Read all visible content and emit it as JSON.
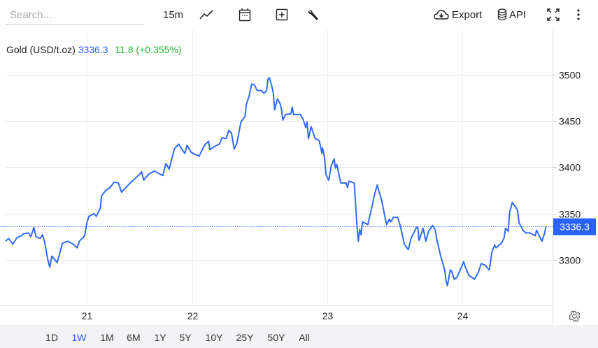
{
  "toolbar": {
    "search_placeholder": "Search...",
    "interval": "15m",
    "export_label": "Export",
    "api_label": "API",
    "icons": [
      "line-chart-icon",
      "calendar-icon",
      "add-indicator-icon",
      "wrench-icon",
      "cloud-download-icon",
      "database-icon",
      "fullscreen-icon",
      "more-vert-icon",
      "settings-gear-icon"
    ]
  },
  "legend": {
    "symbol": "Gold (USD/t.oz)",
    "last": "3336.3",
    "change": "11.8 (+0.355%)"
  },
  "ranges": [
    "1D",
    "1W",
    "1M",
    "6M",
    "1Y",
    "5Y",
    "10Y",
    "25Y",
    "50Y",
    "All"
  ],
  "active_range": "1W",
  "colors": {
    "line": "#2f6bff",
    "accent": "#2962ff",
    "positive": "#22bb33",
    "grid": "#e6e6e6"
  },
  "chart_data": {
    "type": "line",
    "title": "",
    "xlabel": "",
    "ylabel": "",
    "x_unit": "day of month",
    "x_ticks": [
      "21",
      "22",
      "23",
      "24"
    ],
    "y_ticks": [
      "3300",
      "3350",
      "3400",
      "3450",
      "3500"
    ],
    "ylim": [
      3251,
      3549
    ],
    "xlim": [
      20.23,
      24.67
    ],
    "grid": true,
    "last_price_label": "3336.3",
    "last_price": 3336.3,
    "series": [
      {
        "points": [
          [
            20.23,
            3320
          ],
          [
            20.26,
            3323
          ],
          [
            20.3,
            3317
          ],
          [
            20.34,
            3324
          ],
          [
            20.38,
            3326
          ],
          [
            20.4,
            3328
          ],
          [
            20.45,
            3329
          ],
          [
            20.47,
            3325
          ],
          [
            20.5,
            3335
          ],
          [
            20.52,
            3325
          ],
          [
            20.56,
            3323
          ],
          [
            20.58,
            3327
          ],
          [
            20.6,
            3320
          ],
          [
            20.63,
            3301
          ],
          [
            20.65,
            3292
          ],
          [
            20.67,
            3304
          ],
          [
            20.72,
            3297
          ],
          [
            20.74,
            3305
          ],
          [
            20.77,
            3318
          ],
          [
            20.82,
            3320
          ],
          [
            20.87,
            3317
          ],
          [
            20.91,
            3313
          ],
          [
            20.93,
            3320
          ],
          [
            20.98,
            3326
          ],
          [
            21.0,
            3339
          ],
          [
            21.02,
            3347
          ],
          [
            21.07,
            3350
          ],
          [
            21.09,
            3347
          ],
          [
            21.13,
            3356
          ],
          [
            21.14,
            3369
          ],
          [
            21.18,
            3375
          ],
          [
            21.22,
            3378
          ],
          [
            21.26,
            3384
          ],
          [
            21.3,
            3383
          ],
          [
            21.33,
            3373
          ],
          [
            21.37,
            3378
          ],
          [
            21.42,
            3384
          ],
          [
            21.47,
            3389
          ],
          [
            21.52,
            3395
          ],
          [
            21.54,
            3386
          ],
          [
            21.58,
            3392
          ],
          [
            21.64,
            3396
          ],
          [
            21.69,
            3393
          ],
          [
            21.72,
            3391
          ],
          [
            21.75,
            3404
          ],
          [
            21.78,
            3398
          ],
          [
            21.83,
            3420
          ],
          [
            21.87,
            3425
          ],
          [
            21.91,
            3418
          ],
          [
            21.93,
            3415
          ],
          [
            21.95,
            3424
          ],
          [
            21.99,
            3416
          ],
          [
            22.02,
            3414
          ],
          [
            22.05,
            3412
          ],
          [
            22.09,
            3424
          ],
          [
            22.12,
            3428
          ],
          [
            22.13,
            3419
          ],
          [
            22.17,
            3423
          ],
          [
            22.2,
            3425
          ],
          [
            22.22,
            3432
          ],
          [
            22.25,
            3431
          ],
          [
            22.27,
            3440
          ],
          [
            22.29,
            3437
          ],
          [
            22.31,
            3420
          ],
          [
            22.33,
            3426
          ],
          [
            22.36,
            3449
          ],
          [
            22.39,
            3455
          ],
          [
            22.4,
            3468
          ],
          [
            22.42,
            3477
          ],
          [
            22.44,
            3490
          ],
          [
            22.46,
            3489
          ],
          [
            22.48,
            3483
          ],
          [
            22.51,
            3483
          ],
          [
            22.53,
            3480
          ],
          [
            22.55,
            3483
          ],
          [
            22.56,
            3495
          ],
          [
            22.57,
            3497
          ],
          [
            22.59,
            3487
          ],
          [
            22.6,
            3480
          ],
          [
            22.61,
            3462
          ],
          [
            22.63,
            3474
          ],
          [
            22.65,
            3469
          ],
          [
            22.66,
            3463
          ],
          [
            22.67,
            3451
          ],
          [
            22.69,
            3457
          ],
          [
            22.73,
            3458
          ],
          [
            22.74,
            3465
          ],
          [
            22.75,
            3457
          ],
          [
            22.8,
            3457
          ],
          [
            22.82,
            3452
          ],
          [
            22.84,
            3443
          ],
          [
            22.85,
            3449
          ],
          [
            22.86,
            3431
          ],
          [
            22.88,
            3444
          ],
          [
            22.91,
            3431
          ],
          [
            22.94,
            3429
          ],
          [
            22.96,
            3415
          ],
          [
            22.965,
            3421
          ],
          [
            22.98,
            3410
          ],
          [
            22.99,
            3392
          ],
          [
            23.01,
            3386
          ],
          [
            23.03,
            3402
          ],
          [
            23.05,
            3409
          ],
          [
            23.06,
            3399
          ],
          [
            23.07,
            3403
          ],
          [
            23.1,
            3383
          ],
          [
            23.14,
            3383
          ],
          [
            23.15,
            3378
          ],
          [
            23.16,
            3385
          ],
          [
            23.2,
            3383
          ],
          [
            23.22,
            3335
          ],
          [
            23.23,
            3320
          ],
          [
            23.24,
            3333
          ],
          [
            23.25,
            3327
          ],
          [
            23.26,
            3341
          ],
          [
            23.3,
            3338
          ],
          [
            23.33,
            3357
          ],
          [
            23.35,
            3371
          ],
          [
            23.37,
            3381
          ],
          [
            23.38,
            3375
          ],
          [
            23.4,
            3366
          ],
          [
            23.43,
            3344
          ],
          [
            23.44,
            3338
          ],
          [
            23.46,
            3344
          ],
          [
            23.47,
            3341
          ],
          [
            23.49,
            3346
          ],
          [
            23.52,
            3346
          ],
          [
            23.54,
            3337
          ],
          [
            23.56,
            3324
          ],
          [
            23.57,
            3317
          ],
          [
            23.6,
            3311
          ],
          [
            23.62,
            3323
          ],
          [
            23.64,
            3329
          ],
          [
            23.66,
            3335
          ],
          [
            23.67,
            3335
          ],
          [
            23.68,
            3321
          ],
          [
            23.71,
            3334
          ],
          [
            23.73,
            3320
          ],
          [
            23.75,
            3331
          ],
          [
            23.78,
            3337
          ],
          [
            23.8,
            3332
          ],
          [
            23.81,
            3323
          ],
          [
            23.84,
            3304
          ],
          [
            23.87,
            3289
          ],
          [
            23.88,
            3277
          ],
          [
            23.89,
            3272
          ],
          [
            23.91,
            3289
          ],
          [
            23.92,
            3288
          ],
          [
            23.94,
            3279
          ],
          [
            23.96,
            3281
          ],
          [
            23.99,
            3291
          ],
          [
            24.01,
            3298
          ],
          [
            24.02,
            3293
          ],
          [
            24.05,
            3283
          ],
          [
            24.06,
            3282
          ],
          [
            24.09,
            3279
          ],
          [
            24.12,
            3287
          ],
          [
            24.14,
            3296
          ],
          [
            24.17,
            3294
          ],
          [
            24.2,
            3289
          ],
          [
            24.22,
            3309
          ],
          [
            24.24,
            3316
          ],
          [
            24.25,
            3313
          ],
          [
            24.29,
            3318
          ],
          [
            24.31,
            3324
          ],
          [
            24.32,
            3334
          ],
          [
            24.34,
            3331
          ],
          [
            24.35,
            3351
          ],
          [
            24.37,
            3362
          ],
          [
            24.4,
            3356
          ],
          [
            24.41,
            3353
          ],
          [
            24.42,
            3340
          ],
          [
            24.45,
            3332
          ],
          [
            24.47,
            3329
          ],
          [
            24.5,
            3329
          ],
          [
            24.54,
            3326
          ],
          [
            24.55,
            3332
          ],
          [
            24.58,
            3323
          ],
          [
            24.59,
            3320
          ],
          [
            24.61,
            3329
          ],
          [
            24.62,
            3336.3
          ]
        ]
      }
    ]
  }
}
